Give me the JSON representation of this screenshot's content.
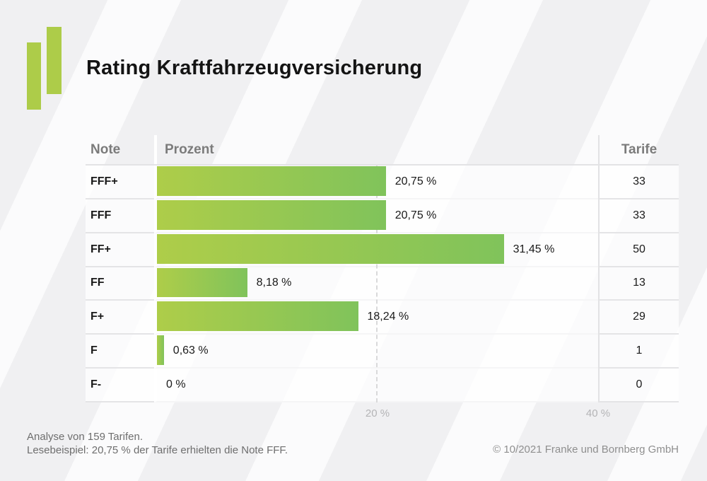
{
  "header": {
    "title": "Rating Kraftfahrzeugversicherung"
  },
  "brand": {
    "logo_color": "#adcc49"
  },
  "table": {
    "columns": {
      "note": "Note",
      "prozent": "Prozent",
      "tarife": "Tarife"
    }
  },
  "chart_data": {
    "type": "bar",
    "orientation": "horizontal",
    "title": "Rating Kraftfahrzeugversicherung",
    "categories": [
      "FFF+",
      "FFF",
      "FF+",
      "FF",
      "F+",
      "F",
      "F-"
    ],
    "series": [
      {
        "name": "Prozent",
        "values": [
          20.75,
          20.75,
          31.45,
          8.18,
          18.24,
          0.63,
          0
        ],
        "labels": [
          "20,75 %",
          "20,75 %",
          "31,45 %",
          "8,18 %",
          "18,24 %",
          "0,63 %",
          "0 %"
        ]
      },
      {
        "name": "Tarife",
        "values": [
          33,
          33,
          50,
          13,
          29,
          1,
          0
        ]
      }
    ],
    "xlim": [
      0,
      40
    ],
    "x_ticks": [
      {
        "value": 20,
        "label": "20 %"
      },
      {
        "value": 40,
        "label": "40 %"
      }
    ],
    "grid": "dashed vertical gridline at 20 %, solid at 40 %",
    "legend": "none",
    "bar_color_start": "#aecd49",
    "bar_color_end": "#80c35b",
    "total_tarife": 159
  },
  "footer": {
    "line1": "Analyse von 159 Tarifen.",
    "line2": "Lesebeispiel: 20,75 % der Tarife erhielten die Note FFF.",
    "copyright": "© 10/2021 Franke und Bornberg GmbH"
  }
}
